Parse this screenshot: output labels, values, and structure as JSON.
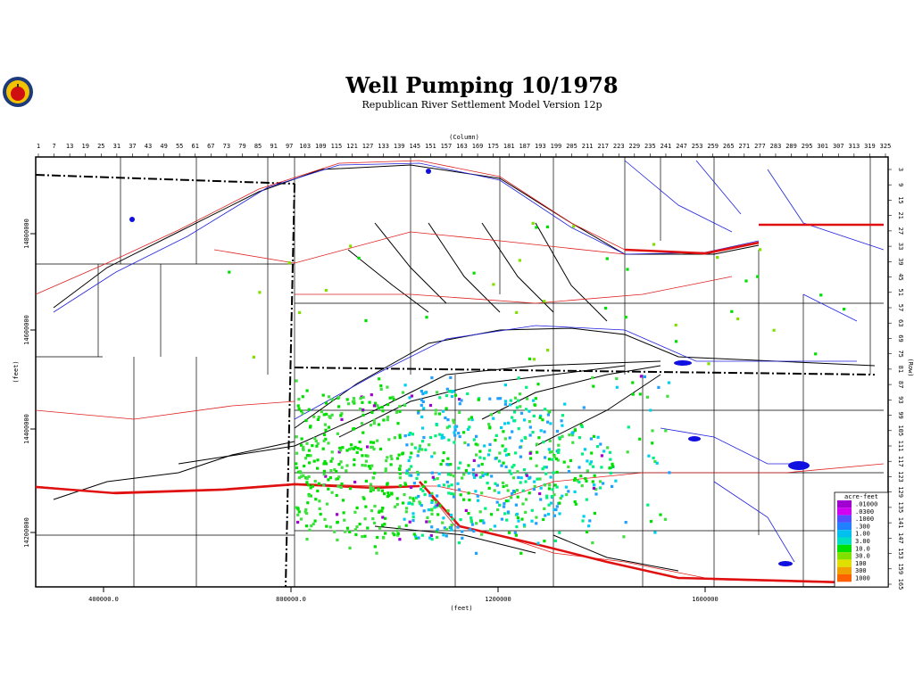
{
  "title": "Well Pumping 10/1978",
  "subtitle": "Republican River Settlement Model Version 12p",
  "top_axis": {
    "label": "(Column)",
    "ticks": [
      1,
      7,
      13,
      19,
      25,
      31,
      37,
      43,
      49,
      55,
      61,
      67,
      73,
      79,
      85,
      91,
      97,
      103,
      109,
      115,
      121,
      127,
      133,
      139,
      145,
      151,
      157,
      163,
      169,
      175,
      181,
      187,
      193,
      199,
      205,
      211,
      217,
      223,
      229,
      235,
      241,
      247,
      253,
      259,
      265,
      271,
      277,
      283,
      289,
      295,
      301,
      307,
      313,
      319,
      325
    ]
  },
  "right_axis": {
    "label": "(Row)",
    "ticks": [
      3,
      9,
      15,
      21,
      27,
      33,
      39,
      45,
      51,
      57,
      63,
      69,
      75,
      81,
      87,
      93,
      99,
      105,
      111,
      117,
      123,
      129,
      135,
      141,
      147,
      153,
      159,
      165
    ]
  },
  "bottom_axis": {
    "label": "(feet)",
    "ticks": [
      "400000.0",
      "800000.0",
      "1200000",
      "1600000"
    ]
  },
  "left_axis": {
    "label": "(feet)",
    "ticks": [
      "14800000",
      "14600000",
      "14400000",
      "14200000"
    ]
  },
  "legend": {
    "title": "acre-feet",
    "labels": [
      ".01000",
      ".0300",
      ".1000",
      ".300",
      "1.00",
      "3.00",
      "10.0",
      "30.0",
      "100",
      "300",
      "1000"
    ]
  }
}
